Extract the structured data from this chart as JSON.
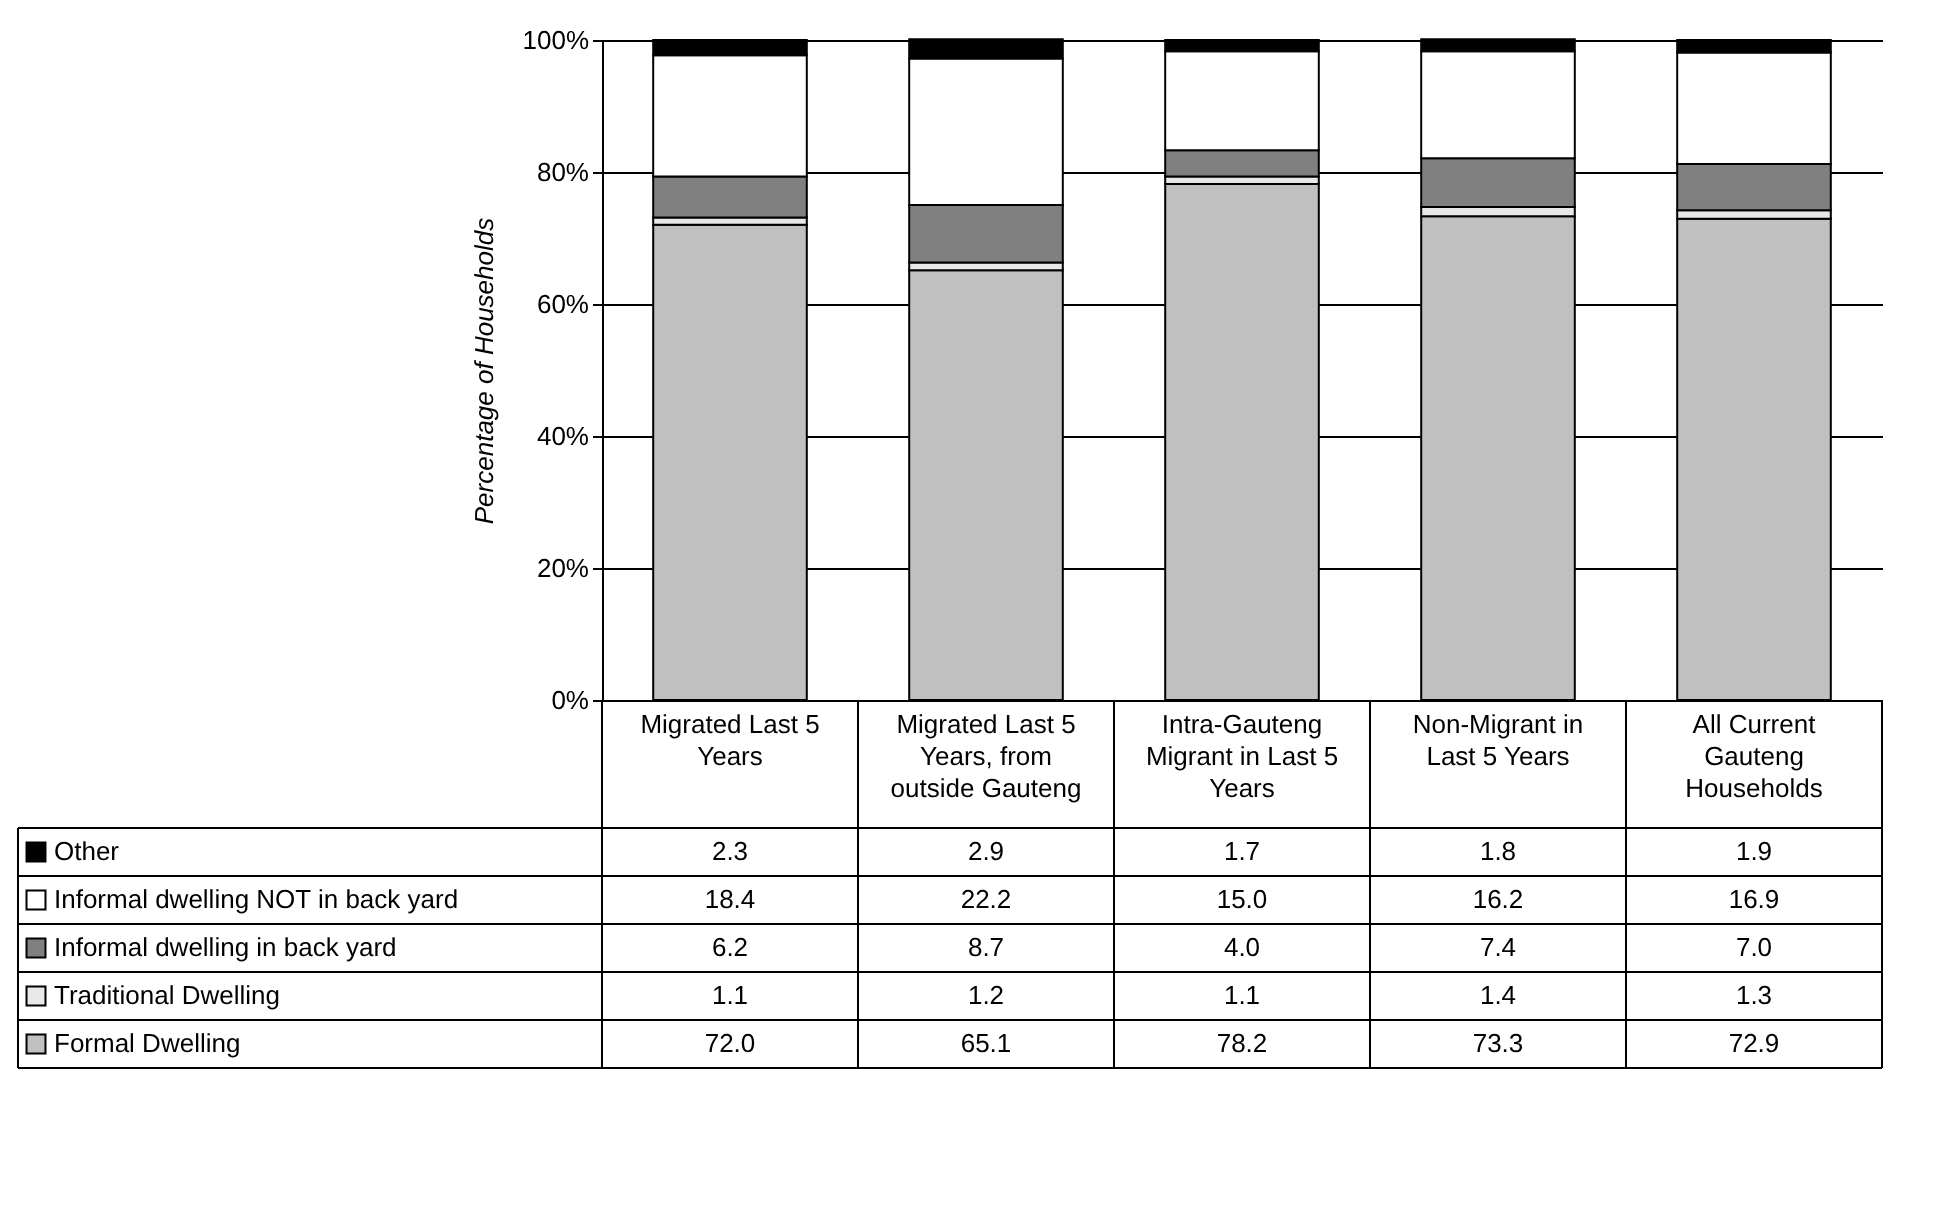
{
  "chart_data": {
    "type": "bar",
    "stacked": true,
    "ylabel": "Percentage of Households",
    "categories": [
      "Migrated Last 5 Years",
      "Migrated Last 5 Years, from outside Gauteng",
      "Intra-Gauteng Migrant in Last 5 Years",
      "Non-Migrant in Last 5 Years",
      "All Current Gauteng Households"
    ],
    "series": [
      {
        "name": "Formal Dwelling",
        "color": "#c0c0c0",
        "values": [
          72.0,
          65.1,
          78.2,
          73.3,
          72.9
        ],
        "value_labels": [
          "72.0",
          "65.1",
          "78.2",
          "73.3",
          "72.9"
        ]
      },
      {
        "name": "Traditional Dwelling",
        "color": "#e8e8e8",
        "values": [
          1.1,
          1.2,
          1.1,
          1.4,
          1.3
        ],
        "value_labels": [
          "1.1",
          "1.2",
          "1.1",
          "1.4",
          "1.3"
        ]
      },
      {
        "name": "Informal dwelling in back yard",
        "color": "#808080",
        "values": [
          6.2,
          8.7,
          4.0,
          7.4,
          7.0
        ],
        "value_labels": [
          "6.2",
          "8.7",
          "4.0",
          "7.4",
          "7.0"
        ]
      },
      {
        "name": "Informal dwelling NOT in back yard",
        "color": "#ffffff",
        "values": [
          18.4,
          22.2,
          15.0,
          16.2,
          16.9
        ],
        "value_labels": [
          "18.4",
          "22.2",
          "15.0",
          "16.2",
          "16.9"
        ]
      },
      {
        "name": "Other",
        "color": "#000000",
        "values": [
          2.3,
          2.9,
          1.7,
          1.8,
          1.9
        ],
        "value_labels": [
          "2.3",
          "2.9",
          "1.7",
          "1.8",
          "1.9"
        ]
      }
    ],
    "ylim": [
      0,
      100
    ],
    "yticks": [
      {
        "value": 0,
        "label": "0%"
      },
      {
        "value": 20,
        "label": "20%"
      },
      {
        "value": 40,
        "label": "40%"
      },
      {
        "value": 60,
        "label": "60%"
      },
      {
        "value": 80,
        "label": "80%"
      },
      {
        "value": 100,
        "label": "100%"
      }
    ],
    "grid": "y",
    "legend": "bottom left"
  }
}
